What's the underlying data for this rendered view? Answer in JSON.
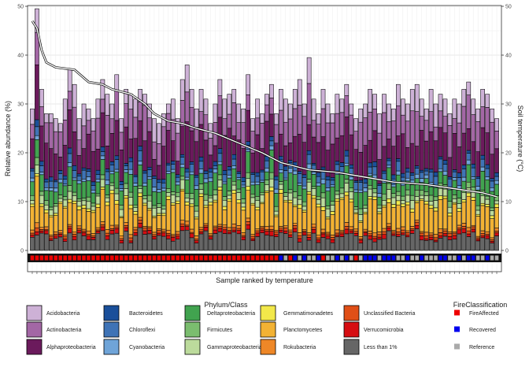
{
  "chart_data": {
    "type": "bar",
    "stacked": true,
    "xlabel": "Sample ranked by temperature",
    "ylabel": "Relative abundance (%)",
    "y2label": "Soil temperature (°C)",
    "ylim": [
      0,
      52
    ],
    "y_ticks": [
      0,
      10,
      20,
      30,
      40,
      50
    ],
    "y2_ticks": [
      0,
      10,
      20,
      30,
      40,
      50
    ],
    "grid": true,
    "n_samples": 100,
    "category_order": [
      "Less than 1%",
      "Verrucomicrobia",
      "Unclassified Bacteria",
      "Rokubacteria",
      "Planctomycetes",
      "Gemmatimonadetes",
      "Gammaproteobacteria",
      "Firmicutes",
      "Deltaproteobacteria",
      "Cyanobacteria",
      "Chloroflexi",
      "Bacteroidetes",
      "Alphaproteobacteria",
      "Actinobacteria",
      "Acidobacteria"
    ],
    "totals": [
      29,
      49.5,
      33,
      28,
      28,
      27,
      26,
      31,
      37,
      34,
      27,
      30,
      29,
      27,
      31,
      35,
      32,
      30,
      36,
      27,
      33,
      32,
      31,
      33,
      32,
      30,
      27,
      26,
      28,
      30,
      31,
      27,
      35,
      38,
      33,
      29,
      33,
      31,
      26,
      30,
      35,
      31,
      32,
      33,
      30,
      29,
      36,
      27,
      31,
      28,
      32,
      34,
      28,
      33,
      31,
      30,
      33,
      35,
      30,
      39.5,
      31,
      28,
      33,
      30,
      28,
      32,
      31,
      34,
      30,
      27,
      29,
      30,
      33,
      32,
      28,
      32,
      30,
      29,
      34,
      31,
      30,
      33,
      34,
      31,
      29,
      33,
      30,
      32,
      31,
      28,
      31,
      30,
      33,
      34.5,
      31,
      29,
      33,
      32,
      29,
      27
    ],
    "temperature_curve": [
      [
        1,
        47
      ],
      [
        2,
        45.5
      ],
      [
        3,
        41
      ],
      [
        4,
        38.5
      ],
      [
        6,
        37.5
      ],
      [
        10,
        37
      ],
      [
        13,
        34.5
      ],
      [
        16,
        34
      ],
      [
        18,
        33
      ],
      [
        22,
        32
      ],
      [
        25,
        30
      ],
      [
        27,
        28
      ],
      [
        30,
        26.5
      ],
      [
        33,
        26
      ],
      [
        36,
        25
      ],
      [
        40,
        24
      ],
      [
        45,
        22
      ],
      [
        50,
        20
      ],
      [
        54,
        18
      ],
      [
        60,
        16.5
      ],
      [
        66,
        16
      ],
      [
        72,
        15
      ],
      [
        78,
        14
      ],
      [
        85,
        13.5
      ],
      [
        92,
        12.5
      ],
      [
        97,
        11.8
      ],
      [
        100,
        11
      ]
    ],
    "fire_classification": [
      "FireAffected",
      "FireAffected",
      "FireAffected",
      "FireAffected",
      "FireAffected",
      "FireAffected",
      "FireAffected",
      "FireAffected",
      "FireAffected",
      "FireAffected",
      "FireAffected",
      "FireAffected",
      "FireAffected",
      "FireAffected",
      "FireAffected",
      "FireAffected",
      "FireAffected",
      "FireAffected",
      "FireAffected",
      "FireAffected",
      "FireAffected",
      "FireAffected",
      "FireAffected",
      "FireAffected",
      "FireAffected",
      "FireAffected",
      "FireAffected",
      "FireAffected",
      "FireAffected",
      "FireAffected",
      "FireAffected",
      "FireAffected",
      "FireAffected",
      "FireAffected",
      "FireAffected",
      "FireAffected",
      "FireAffected",
      "FireAffected",
      "FireAffected",
      "FireAffected",
      "FireAffected",
      "FireAffected",
      "FireAffected",
      "FireAffected",
      "FireAffected",
      "FireAffected",
      "FireAffected",
      "FireAffected",
      "FireAffected",
      "FireAffected",
      "FireAffected",
      "FireAffected",
      "FireAffected",
      "Recovered",
      "Reference",
      "FireAffected",
      "Recovered",
      "Reference",
      "Recovered",
      "Reference",
      "Reference",
      "Recovered",
      "FireAffected",
      "Reference",
      "Reference",
      "Recovered",
      "Reference",
      "Recovered",
      "Reference",
      "FireAffected",
      "Reference",
      "Recovered",
      "Recovered",
      "Recovered",
      "Reference",
      "Recovered",
      "Recovered",
      "Recovered",
      "Reference",
      "Reference",
      "Recovered",
      "Reference",
      "Reference",
      "Recovered",
      "Reference",
      "Reference",
      "Reference",
      "Recovered",
      "Recovered",
      "Reference",
      "Reference",
      "Recovered",
      "Reference",
      "Recovered",
      "Recovered",
      "Reference",
      "Reference",
      "Recovered",
      "Reference",
      "Reference"
    ],
    "fire_colors": {
      "FireAffected": "#ee0000",
      "Recovered": "#0000ee",
      "Reference": "#aaaaaa"
    },
    "legend_phylum_title": "Phylum/Class",
    "legend_phylum": [
      {
        "name": "Acidobacteria",
        "color": "#cdb1d6"
      },
      {
        "name": "Actinobacteria",
        "color": "#a367a5"
      },
      {
        "name": "Alphaproteobacteria",
        "color": "#6b1a5c"
      },
      {
        "name": "Bacteroidetes",
        "color": "#1a4f9a"
      },
      {
        "name": "Chloroflexi",
        "color": "#3f73b6"
      },
      {
        "name": "Cyanobacteria",
        "color": "#6fa4d8"
      },
      {
        "name": "Deltaproteobacteria",
        "color": "#41a34f"
      },
      {
        "name": "Firmicutes",
        "color": "#7bbd6f"
      },
      {
        "name": "Gammaproteobacteria",
        "color": "#bcdb9c"
      },
      {
        "name": "Gemmatimonadetes",
        "color": "#f2e84a"
      },
      {
        "name": "Planctomycetes",
        "color": "#f2b234"
      },
      {
        "name": "Rokubacteria",
        "color": "#ee8727"
      },
      {
        "name": "Unclassified Bacteria",
        "color": "#e04f17"
      },
      {
        "name": "Verrucomicrobia",
        "color": "#d60d12"
      },
      {
        "name": "Less than 1%",
        "color": "#666666"
      }
    ],
    "legend_fire_title": "FireClassification",
    "legend_fire": [
      {
        "name": "FireAffected",
        "color": "#ee0000"
      },
      {
        "name": "Recovered",
        "color": "#0000ee"
      },
      {
        "name": "Reference",
        "color": "#aaaaaa"
      }
    ]
  }
}
